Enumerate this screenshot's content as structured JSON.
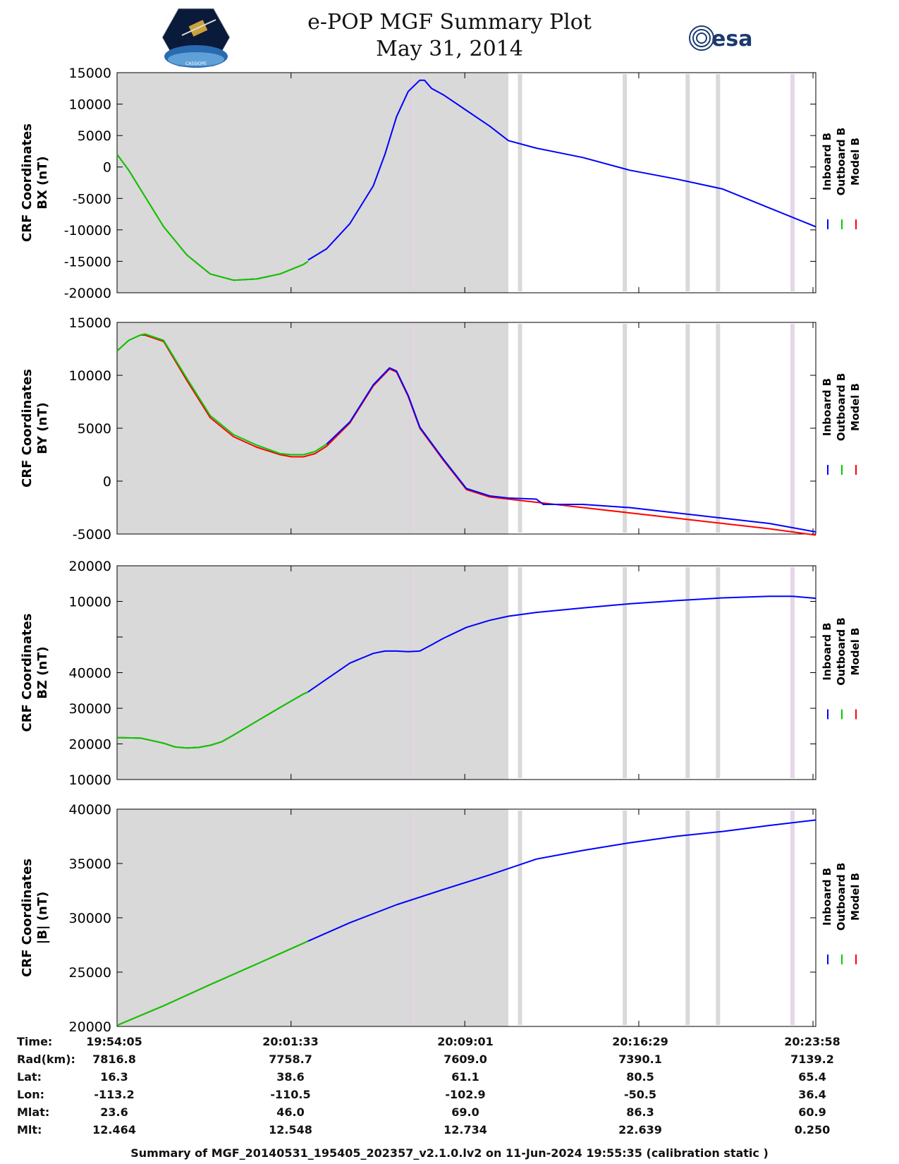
{
  "header": {
    "title_line1": "e-POP MGF Summary Plot",
    "title_line2": "May 31, 2014",
    "left_logo_text": "CASSIOPE",
    "right_logo_text": "esa"
  },
  "legend": [
    "Inboard B",
    "Outboard B",
    "Model B"
  ],
  "colors": {
    "inboard": "#0000ff",
    "outboard": "#00cc00",
    "model": "#ff0000",
    "shade": "#d9d9d9",
    "marker": "#e8c8e8"
  },
  "chart_data": [
    {
      "type": "line",
      "ylabel": [
        "CRF Coordinates",
        "BX (nT)"
      ],
      "ylim": [
        -20000,
        15000
      ],
      "yticks": [
        "15000",
        "10000",
        "5000",
        "0",
        "-5000",
        "-10000",
        "-15000",
        "-20000"
      ],
      "ytick_values": [
        15000,
        10000,
        5000,
        0,
        -5000,
        -10000,
        -15000,
        -20000
      ],
      "x_range_min": [
        0,
        30
      ],
      "shade_until_min": 16.8,
      "gaps_min": [
        17.3,
        21.8,
        24.5,
        25.8,
        29.0
      ],
      "marker_min": 12.6,
      "series": [
        {
          "name": "Model B",
          "color": "#ff0000",
          "x": [
            0,
            0.5,
            1,
            2,
            3,
            4,
            5,
            6,
            7,
            8,
            8.2
          ],
          "y": [
            2000,
            -500,
            -3500,
            -9500,
            -14000,
            -17000,
            -18000,
            -17800,
            -17000,
            -15500,
            -15000
          ]
        },
        {
          "name": "Outboard B",
          "color": "#00cc00",
          "x": [
            0,
            0.5,
            1,
            2,
            3,
            4,
            5,
            6,
            7,
            8,
            8.2
          ],
          "y": [
            2000,
            -500,
            -3500,
            -9500,
            -14000,
            -17000,
            -18000,
            -17800,
            -17000,
            -15500,
            -15000
          ]
        },
        {
          "name": "Inboard B",
          "color": "#0000ff",
          "x": [
            8.2,
            9,
            10,
            11,
            11.5,
            12,
            12.5,
            13,
            13.2,
            13.5,
            14,
            15,
            16,
            16.8,
            18,
            20,
            22,
            24,
            26,
            28,
            30
          ],
          "y": [
            -14800,
            -13000,
            -9000,
            -3000,
            2000,
            8000,
            12000,
            13800,
            13800,
            12500,
            11500,
            9000,
            6500,
            4200,
            3000,
            1500,
            -500,
            -1900,
            -3500,
            -6500,
            -9500
          ]
        }
      ]
    },
    {
      "type": "line",
      "ylabel": [
        "CRF Coordinates",
        "BY (nT)"
      ],
      "ylim": [
        -5000,
        15000
      ],
      "yticks": [
        "15000",
        "10000",
        "5000",
        "0",
        "-5000"
      ],
      "ytick_values": [
        15000,
        10000,
        5000,
        0,
        -5000
      ],
      "x_range_min": [
        0,
        30
      ],
      "shade_until_min": 16.8,
      "gaps_min": [
        17.3,
        21.8,
        24.5,
        25.8,
        29.0
      ],
      "marker_min": 12.6,
      "series": [
        {
          "name": "Model B",
          "color": "#ff0000",
          "x": [
            0,
            0.5,
            1,
            1.2,
            2,
            3,
            4,
            5,
            6,
            7,
            7.5,
            8,
            8.5,
            9,
            10,
            11,
            11.7,
            12,
            12.5,
            13,
            14,
            15,
            16,
            16.8,
            18,
            20,
            22,
            24,
            26,
            28,
            30
          ],
          "y": [
            12300,
            13300,
            13800,
            13800,
            13200,
            9500,
            6000,
            4200,
            3200,
            2500,
            2300,
            2300,
            2600,
            3300,
            5500,
            9000,
            10600,
            10300,
            8000,
            5000,
            2000,
            -800,
            -1500,
            -1700,
            -2000,
            -2500,
            -3000,
            -3500,
            -4000,
            -4500,
            -5100
          ]
        },
        {
          "name": "Outboard B",
          "color": "#00cc00",
          "x": [
            0,
            0.5,
            1,
            1.2,
            2,
            3,
            4,
            5,
            6,
            7,
            7.5,
            8,
            8.5,
            9
          ],
          "y": [
            12300,
            13300,
            13800,
            13900,
            13300,
            9700,
            6200,
            4400,
            3400,
            2600,
            2500,
            2500,
            2800,
            3500
          ]
        },
        {
          "name": "Inboard B",
          "color": "#0000ff",
          "x": [
            9,
            10,
            11,
            11.7,
            12,
            12.5,
            13,
            14,
            15,
            16,
            16.8,
            18,
            18.3,
            20,
            22,
            24,
            26,
            28,
            30
          ],
          "y": [
            3500,
            5600,
            9100,
            10700,
            10400,
            8100,
            5100,
            2100,
            -700,
            -1400,
            -1600,
            -1700,
            -2200,
            -2200,
            -2500,
            -3000,
            -3500,
            -4000,
            -4800
          ]
        }
      ]
    },
    {
      "type": "line",
      "ylabel": [
        "CRF Coordinates",
        "BZ (nT)"
      ],
      "ylim": [
        10000,
        20000
      ],
      "yticks": [
        "20000",
        "10000",
        "",
        "40000",
        "30000",
        "20000",
        "10000"
      ],
      "ytick_values": [
        20000,
        10000,
        0,
        40000,
        30000,
        20000,
        10000
      ],
      "ytick_fracs": [
        0,
        0.1667,
        0.3333,
        0.5,
        0.6667,
        0.8333,
        1
      ],
      "x_range_min": [
        0,
        30
      ],
      "shade_until_min": 16.8,
      "gaps_min": [
        17.3,
        21.8,
        24.5,
        25.8,
        29.0
      ],
      "marker_min": 12.6,
      "series": [
        {
          "name": "Model B",
          "color": "#ff0000",
          "x": [
            0,
            1,
            2,
            2.5,
            3,
            3.5,
            4,
            4.5,
            5,
            6,
            7,
            8,
            8.2
          ],
          "y": [
            0.804,
            0.806,
            0.83,
            0.848,
            0.852,
            0.85,
            0.84,
            0.823,
            0.792,
            0.727,
            0.663,
            0.6,
            0.59
          ]
        },
        {
          "name": "Outboard B",
          "color": "#00cc00",
          "x": [
            0,
            1,
            2,
            2.5,
            3,
            3.5,
            4,
            4.5,
            5,
            6,
            7,
            8,
            8.2
          ],
          "y": [
            0.804,
            0.806,
            0.83,
            0.848,
            0.852,
            0.85,
            0.84,
            0.823,
            0.792,
            0.727,
            0.663,
            0.6,
            0.59
          ]
        },
        {
          "name": "Inboard B",
          "color": "#0000ff",
          "x": [
            8.2,
            9,
            10,
            11,
            11.5,
            12,
            12.5,
            13,
            13.5,
            14,
            15,
            16,
            16.8,
            18,
            20,
            22,
            24,
            26,
            28,
            29,
            30
          ],
          "y": [
            0.59,
            0.53,
            0.455,
            0.41,
            0.399,
            0.399,
            0.402,
            0.399,
            0.37,
            0.34,
            0.288,
            0.255,
            0.236,
            0.218,
            0.197,
            0.178,
            0.163,
            0.15,
            0.143,
            0.143,
            0.152
          ]
        }
      ]
    },
    {
      "type": "line",
      "ylabel": [
        "CRF Coordinates",
        "|B| (nT)"
      ],
      "ylim": [
        20000,
        40000
      ],
      "yticks": [
        "40000",
        "35000",
        "30000",
        "25000",
        "20000"
      ],
      "ytick_values": [
        40000,
        35000,
        30000,
        25000,
        20000
      ],
      "x_range_min": [
        0,
        30
      ],
      "shade_until_min": 16.8,
      "gaps_min": [
        17.3,
        21.8,
        24.5,
        25.8,
        29.0
      ],
      "marker_min": 12.6,
      "series": [
        {
          "name": "Model B",
          "color": "#ff0000",
          "x": [
            0,
            2,
            4,
            6,
            8.2
          ],
          "y": [
            20100,
            21900,
            23850,
            25750,
            27850
          ]
        },
        {
          "name": "Outboard B",
          "color": "#00cc00",
          "x": [
            0,
            2,
            4,
            6,
            8.2
          ],
          "y": [
            20100,
            21900,
            23850,
            25750,
            27850
          ]
        },
        {
          "name": "Inboard B",
          "color": "#0000ff",
          "x": [
            8.2,
            10,
            12,
            14,
            16,
            18,
            20,
            22,
            24,
            26,
            28,
            30
          ],
          "y": [
            27850,
            29550,
            31200,
            32600,
            33950,
            35400,
            36200,
            36900,
            37500,
            37950,
            38500,
            39000
          ]
        }
      ]
    }
  ],
  "time_table": {
    "labels": [
      "Time:",
      "Rad(km):",
      "Lat:",
      "Lon:",
      "Mlat:",
      "Mlt:"
    ],
    "columns": [
      [
        "19:54:05",
        "7816.8",
        "16.3",
        "-113.2",
        "23.6",
        "12.464"
      ],
      [
        "20:01:33",
        "7758.7",
        "38.6",
        "-110.5",
        "46.0",
        "12.548"
      ],
      [
        "20:09:01",
        "7609.0",
        "61.1",
        "-102.9",
        "69.0",
        "12.734"
      ],
      [
        "20:16:29",
        "7390.1",
        "80.5",
        "-50.5",
        "86.3",
        "22.639"
      ],
      [
        "20:23:58",
        "7139.2",
        "65.4",
        "36.4",
        "60.9",
        "0.250"
      ]
    ]
  },
  "footer": "Summary of MGF_20140531_195405_202357_v2.1.0.lv2 on 11-Jun-2024 19:55:35 (calibration static )"
}
